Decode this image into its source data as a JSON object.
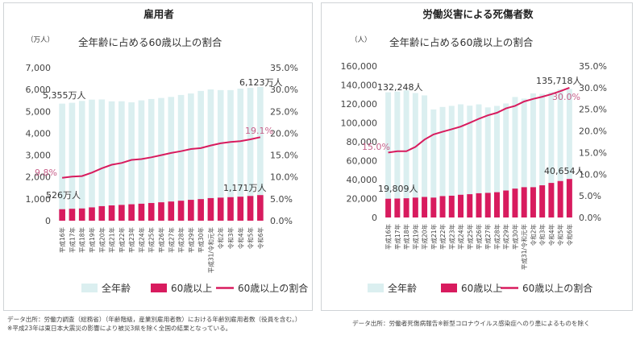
{
  "chart_data": [
    {
      "type": "bar",
      "title": "雇用者",
      "subtitle": "全年齢に占める60歳以上の割合",
      "y_unit": "（万人）",
      "categories": [
        "平成16年",
        "平成17年",
        "平成18年",
        "平成19年",
        "平成20年",
        "平成21年",
        "平成22年",
        "平成23年",
        "平成24年",
        "平成25年",
        "平成26年",
        "平成27年",
        "平成28年",
        "平成29年",
        "平成30年",
        "平成31/令和元年",
        "令和2年",
        "令和3年",
        "令和4年",
        "令和5年",
        "令和6年"
      ],
      "series": [
        {
          "name": "全年齢",
          "color": "#dbeff0",
          "values": [
            5355,
            5393,
            5478,
            5537,
            5546,
            5460,
            5463,
            5414,
            5504,
            5567,
            5613,
            5663,
            5750,
            5819,
            5936,
            6004,
            5973,
            5973,
            6041,
            6076,
            6123
          ]
        },
        {
          "name": "60歳以上",
          "color": "#d81b5e",
          "values": [
            526,
            546,
            560,
            610,
            666,
            700,
            722,
            752,
            777,
            809,
            842,
            877,
            914,
            955,
            988,
            1034,
            1055,
            1076,
            1098,
            1131,
            1171
          ]
        },
        {
          "name": "60歳以上の割合",
          "color": "#d81b5e",
          "type": "line",
          "axis": "right",
          "values": [
            9.8,
            10.1,
            10.2,
            11.0,
            12.0,
            12.8,
            13.2,
            13.9,
            14.1,
            14.5,
            15.0,
            15.5,
            15.9,
            16.4,
            16.6,
            17.2,
            17.7,
            18.0,
            18.2,
            18.6,
            19.1
          ]
        }
      ],
      "ylim": [
        0,
        7000
      ],
      "y_ticks": [
        "0",
        "1,000",
        "2,000",
        "3,000",
        "4,000",
        "5,000",
        "6,000",
        "7,000"
      ],
      "y2lim": [
        0,
        35
      ],
      "y2_ticks": [
        "0.0%",
        "5.0%",
        "10.0%",
        "15.0%",
        "20.0%",
        "25.0%",
        "30.0%",
        "35.0%"
      ],
      "annotations": {
        "all_first": "5,355万人",
        "all_last": "6,123万人",
        "sixty_first": "526万人",
        "sixty_last": "1,171万人",
        "ratio_first": "9.8%",
        "ratio_last": "19.1%"
      },
      "legend": [
        "全年齢",
        "60歳以上",
        "60歳以上の割合"
      ],
      "legend_position": "bottom",
      "grid": false,
      "footnote_1": "データ出所：労働力調査（総務省）（年齢階級，産業別雇用者数）における年齢別雇用者数（役員を含む。）",
      "footnote_2": "※平成23年は東日本大震災の影響により被災3県を除く全国の結果となっている。"
    },
    {
      "type": "bar",
      "title": "労働災害による死傷者数",
      "subtitle": "全年齢に占める60歳以上の割合",
      "y_unit": "（人）",
      "categories": [
        "平成16年",
        "平成17年",
        "平成18年",
        "平成19年",
        "平成20年",
        "平成21年",
        "平成22年",
        "平成23年",
        "平成24年",
        "平成25年",
        "平成26年",
        "平成27年",
        "平成28年",
        "平成29年",
        "平成30年",
        "平成31/令和元年",
        "令和2年",
        "令和3年",
        "令和4年",
        "令和5年",
        "令和6年"
      ],
      "series": [
        {
          "name": "全年齢",
          "color": "#dbeff0",
          "values": [
            132248,
            133050,
            134298,
            131478,
            129026,
            114152,
            116733,
            117958,
            119576,
            118157,
            119535,
            116311,
            117910,
            120460,
            127329,
            125611,
            131156,
            130586,
            132355,
            135371,
            135718
          ]
        },
        {
          "name": "60歳以上",
          "color": "#d81b5e",
          "values": [
            19809,
            20000,
            20300,
            21000,
            21700,
            21000,
            22600,
            23000,
            24000,
            24600,
            25600,
            26000,
            26700,
            28500,
            30500,
            32000,
            32000,
            34000,
            36500,
            38500,
            40654
          ]
        },
        {
          "name": "60歳以上の割合",
          "color": "#d81b5e",
          "type": "line",
          "axis": "right",
          "values": [
            15.0,
            15.3,
            15.3,
            16.3,
            18.0,
            19.2,
            19.8,
            20.4,
            21.0,
            21.9,
            22.8,
            23.6,
            24.2,
            25.2,
            25.8,
            26.8,
            27.4,
            27.9,
            28.5,
            29.2,
            30.0
          ]
        }
      ],
      "ylim": [
        0,
        160000
      ],
      "y_ticks": [
        "0",
        "20,000",
        "40,000",
        "60,000",
        "80,000",
        "100,000",
        "120,000",
        "140,000",
        "160,000"
      ],
      "y2lim": [
        0,
        35
      ],
      "y2_ticks": [
        "0.0%",
        "5.0%",
        "10.0%",
        "15.0%",
        "20.0%",
        "25.0%",
        "30.0%",
        "35.0%"
      ],
      "annotations": {
        "all_first": "132,248人",
        "all_last": "135,718人",
        "sixty_first": "19,809人",
        "sixty_last": "40,654人",
        "ratio_first": "15.0%",
        "ratio_last": "30.0%"
      },
      "legend": [
        "全年齢",
        "60歳以上",
        "60歳以上の割合"
      ],
      "legend_position": "bottom",
      "grid": false,
      "footnote_1": "データ出所：労働者死傷病報告※新型コロナウイルス感染症へのり患によるものを除く"
    }
  ]
}
